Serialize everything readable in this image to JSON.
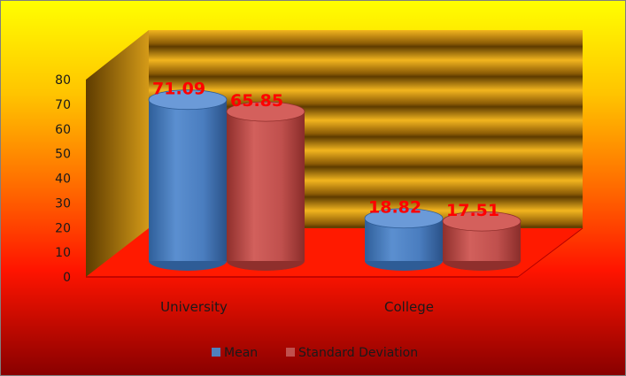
{
  "chart_data": {
    "type": "bar",
    "categories": [
      "University",
      "College"
    ],
    "series": [
      {
        "name": "Mean",
        "values": [
          71.09,
          18.82
        ]
      },
      {
        "name": "Standard Deviation",
        "values": [
          65.85,
          17.51
        ]
      }
    ],
    "data_labels": {
      "University": [
        "71.09",
        "65.85"
      ],
      "College": [
        "18.82",
        "17.51"
      ]
    },
    "ylim": [
      0,
      80
    ],
    "yticks": [
      "0",
      "10",
      "20",
      "30",
      "40",
      "50",
      "60",
      "70",
      "80"
    ],
    "legend_position": "bottom",
    "bar_shape": "cylinder-3d",
    "colors": {
      "Mean": "#4f81bd",
      "Standard Deviation": "#c0504d",
      "data_label": "#ff0000",
      "background_top": "#ffff00",
      "background_bottom": "#ff0000",
      "back_wall": "#c8961e",
      "floor": "#ff1a00"
    }
  }
}
